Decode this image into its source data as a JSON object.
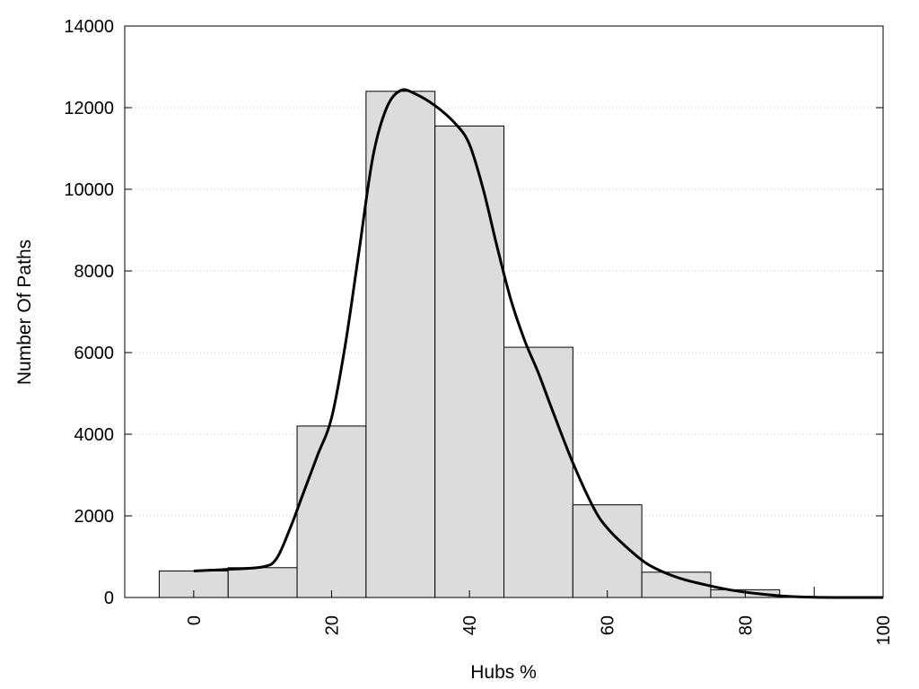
{
  "chart_data": {
    "type": "bar",
    "xlabel": "Hubs %",
    "ylabel": "Number Of Paths",
    "xlim": [
      -10,
      100
    ],
    "ylim": [
      0,
      14000
    ],
    "x_ticks": [
      0,
      20,
      40,
      60,
      80,
      100
    ],
    "y_ticks": [
      0,
      2000,
      4000,
      6000,
      8000,
      10000,
      12000,
      14000
    ],
    "grid": "horizontal dotted",
    "bar_width": 10,
    "bars": [
      {
        "x": 0,
        "value": 650
      },
      {
        "x": 10,
        "value": 730
      },
      {
        "x": 20,
        "value": 4200
      },
      {
        "x": 30,
        "value": 12400
      },
      {
        "x": 40,
        "value": 11550
      },
      {
        "x": 50,
        "value": 6130
      },
      {
        "x": 60,
        "value": 2270
      },
      {
        "x": 70,
        "value": 620
      },
      {
        "x": 80,
        "value": 190
      },
      {
        "x": 90,
        "value": 0
      }
    ],
    "bar_color": "#dcdcdc",
    "curve": {
      "points": [
        [
          0,
          650
        ],
        [
          5,
          690
        ],
        [
          10,
          750
        ],
        [
          12,
          950
        ],
        [
          14,
          1700
        ],
        [
          16,
          2600
        ],
        [
          18,
          3500
        ],
        [
          20,
          4400
        ],
        [
          22,
          6200
        ],
        [
          24,
          8500
        ],
        [
          26,
          10800
        ],
        [
          28,
          12000
        ],
        [
          30,
          12420
        ],
        [
          32,
          12350
        ],
        [
          35,
          12050
        ],
        [
          38,
          11600
        ],
        [
          40,
          11100
        ],
        [
          42,
          10000
        ],
        [
          44,
          8600
        ],
        [
          46,
          7300
        ],
        [
          48,
          6300
        ],
        [
          50,
          5500
        ],
        [
          52,
          4600
        ],
        [
          55,
          3300
        ],
        [
          58,
          2200
        ],
        [
          60,
          1700
        ],
        [
          63,
          1200
        ],
        [
          66,
          800
        ],
        [
          70,
          500
        ],
        [
          74,
          320
        ],
        [
          78,
          180
        ],
        [
          82,
          90
        ],
        [
          86,
          30
        ],
        [
          90,
          5
        ],
        [
          95,
          0
        ],
        [
          100,
          0
        ]
      ]
    }
  }
}
